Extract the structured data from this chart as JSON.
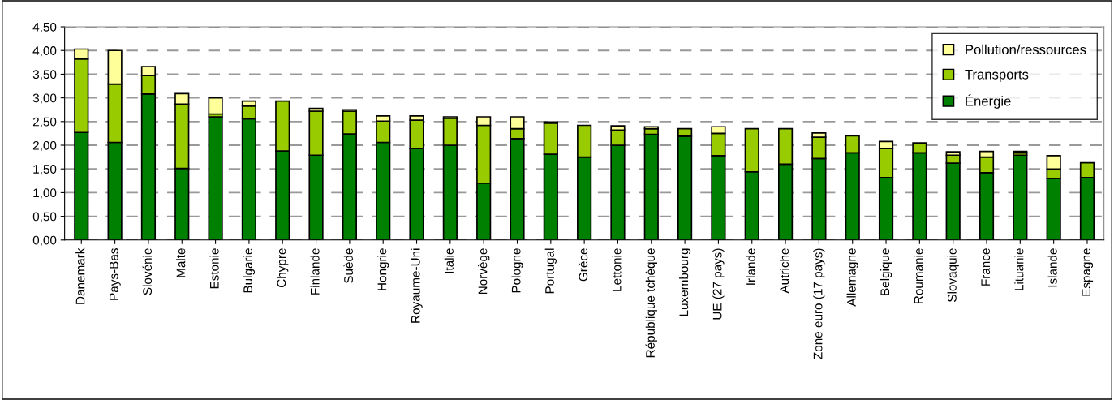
{
  "chart_data": {
    "type": "bar",
    "stacked": true,
    "categories": [
      "Danemark",
      "Pays-Bas",
      "Slovénie",
      "Malte",
      "Estonie",
      "Bulgarie",
      "Chypre",
      "Finlande",
      "Suède",
      "Hongrie",
      "Royaume-Uni",
      "Italie",
      "Norvège",
      "Pologne",
      "Portugal",
      "Grèce",
      "Lettonie",
      "République tchèque",
      "Luxembourg",
      "UE (27 pays)",
      "Irlande",
      "Autriche",
      "Zone euro (17 pays)",
      "Allemagne",
      "Belgique",
      "Roumanie",
      "Slovaquie",
      "France",
      "Lituanie",
      "Islande",
      "Espagne"
    ],
    "series": [
      {
        "name": "Énergie",
        "color": "#008000",
        "values": [
          2.27,
          2.06,
          3.08,
          1.51,
          2.6,
          2.56,
          1.88,
          1.79,
          2.24,
          2.06,
          1.93,
          2.0,
          1.2,
          2.14,
          1.81,
          1.75,
          2.0,
          2.23,
          2.19,
          1.78,
          1.44,
          1.6,
          1.72,
          1.84,
          1.32,
          1.84,
          1.62,
          1.42,
          1.79,
          1.3,
          1.32
        ]
      },
      {
        "name": "Transports",
        "color": "#99cc00",
        "values": [
          1.55,
          1.23,
          0.39,
          1.36,
          0.06,
          0.27,
          1.05,
          0.93,
          0.48,
          0.45,
          0.6,
          0.57,
          1.22,
          0.21,
          0.66,
          0.67,
          0.32,
          0.12,
          0.16,
          0.47,
          0.91,
          0.75,
          0.45,
          0.36,
          0.61,
          0.21,
          0.17,
          0.33,
          0.05,
          0.2,
          0.31
        ]
      },
      {
        "name": "Pollution/ressources",
        "color": "#ffff99",
        "values": [
          0.21,
          0.71,
          0.19,
          0.22,
          0.34,
          0.1,
          null,
          0.06,
          0.03,
          0.11,
          0.09,
          0.03,
          0.18,
          0.25,
          0.02,
          null,
          0.09,
          0.04,
          null,
          0.14,
          null,
          null,
          0.09,
          null,
          0.15,
          null,
          0.07,
          0.12,
          0.03,
          0.28,
          null
        ]
      }
    ],
    "ylim": [
      0,
      4.5
    ],
    "yticks": [
      {
        "value": 0,
        "label": "0,00"
      },
      {
        "value": 0.5,
        "label": "0,50"
      },
      {
        "value": 1,
        "label": "1,00"
      },
      {
        "value": 1.5,
        "label": "1,50"
      },
      {
        "value": 2,
        "label": "2,00"
      },
      {
        "value": 2.5,
        "label": "2,50"
      },
      {
        "value": 3,
        "label": "3,00"
      },
      {
        "value": 3.5,
        "label": "3,50"
      },
      {
        "value": 4,
        "label": "4,00"
      },
      {
        "value": 4.5,
        "label": "4,50"
      }
    ],
    "grid": "y",
    "legend": "top right"
  }
}
